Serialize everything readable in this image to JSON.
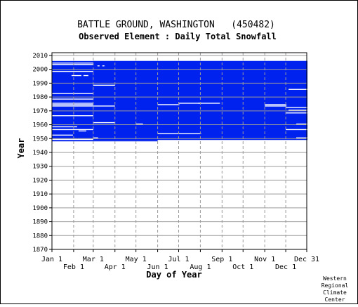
{
  "chart_data": {
    "type": "heatmap",
    "title": "BATTLE GROUND, WASHINGTON   (450482)",
    "subtitle": "Observed Element : Daily Total Snowfall",
    "xlabel": "Day of Year",
    "ylabel": "Year",
    "x_ticks_top_row": [
      "Jan 1",
      "Mar 1",
      "May 1",
      "Jul 1",
      "Sep 1",
      "Nov 1",
      "Dec 31"
    ],
    "x_ticks_bottom_row": [
      "Feb 1",
      "Apr 1",
      "Jun 1",
      "Aug 1",
      "Oct 1",
      "Dec 1"
    ],
    "x_tick_days": [
      1,
      32,
      60,
      91,
      121,
      152,
      182,
      213,
      244,
      274,
      305,
      335,
      365
    ],
    "y_ticks": [
      1870,
      1880,
      1890,
      1900,
      1910,
      1920,
      1930,
      1940,
      1950,
      1960,
      1970,
      1980,
      1990,
      2000,
      2010
    ],
    "xlim": [
      1,
      365
    ],
    "ylim": [
      1870,
      2012
    ],
    "grid": true,
    "data_color": "#0022ee",
    "coverage": [
      {
        "year_start": 2000,
        "year_end": 2005,
        "day_start": 1,
        "day_end": 365
      },
      {
        "year_start": 1949,
        "year_end": 2005,
        "day_start": 60,
        "day_end": 365
      },
      {
        "year_start": 1950,
        "year_end": 1999,
        "day_start": 1,
        "day_end": 59
      },
      {
        "year_start": 1948,
        "year_end": 1948,
        "day_start": 1,
        "day_end": 151
      }
    ],
    "missing": [
      {
        "year": 2004,
        "day_start": 1,
        "day_end": 59
      },
      {
        "year": 2003,
        "day_start": 1,
        "day_end": 59
      },
      {
        "year": 2002,
        "day_start": 66,
        "day_end": 68
      },
      {
        "year": 2002,
        "day_start": 73,
        "day_end": 75
      },
      {
        "year": 1998,
        "day_start": 1,
        "day_end": 59
      },
      {
        "year": 1995,
        "day_start": 29,
        "day_end": 42
      },
      {
        "year": 1995,
        "day_start": 46,
        "day_end": 52
      },
      {
        "year": 1988,
        "day_start": 60,
        "day_end": 90
      },
      {
        "year": 1985,
        "day_start": 339,
        "day_end": 365
      },
      {
        "year": 1982,
        "day_start": 1,
        "day_end": 59
      },
      {
        "year": 1978,
        "day_start": 1,
        "day_end": 59
      },
      {
        "year": 1975,
        "day_start": 1,
        "day_end": 59
      },
      {
        "year": 1975,
        "day_start": 182,
        "day_end": 213
      },
      {
        "year": 1975,
        "day_start": 210,
        "day_end": 240
      },
      {
        "year": 1974,
        "day_start": 1,
        "day_end": 59
      },
      {
        "year": 1974,
        "day_start": 152,
        "day_end": 182
      },
      {
        "year": 1974,
        "day_start": 305,
        "day_end": 335
      },
      {
        "year": 1973,
        "day_start": 1,
        "day_end": 59
      },
      {
        "year": 1973,
        "day_start": 60,
        "day_end": 90
      },
      {
        "year": 1973,
        "day_start": 305,
        "day_end": 335
      },
      {
        "year": 1972,
        "day_start": 335,
        "day_end": 365
      },
      {
        "year": 1970,
        "day_start": 339,
        "day_end": 365
      },
      {
        "year": 1968,
        "day_start": 335,
        "day_end": 365
      },
      {
        "year": 1966,
        "day_start": 1,
        "day_end": 59
      },
      {
        "year": 1961,
        "day_start": 60,
        "day_end": 90
      },
      {
        "year": 1960,
        "day_start": 121,
        "day_end": 130
      },
      {
        "year": 1960,
        "day_start": 350,
        "day_end": 365
      },
      {
        "year": 1958,
        "day_start": 1,
        "day_end": 36
      },
      {
        "year": 1956,
        "day_start": 1,
        "day_end": 59
      },
      {
        "year": 1956,
        "day_start": 335,
        "day_end": 365
      },
      {
        "year": 1955,
        "day_start": 39,
        "day_end": 49
      },
      {
        "year": 1953,
        "day_start": 152,
        "day_end": 213
      },
      {
        "year": 1952,
        "day_start": 1,
        "day_end": 30
      },
      {
        "year": 1950,
        "day_start": 60,
        "day_end": 66
      },
      {
        "year": 1950,
        "day_start": 350,
        "day_end": 365
      },
      {
        "year": 1949,
        "day_start": 1,
        "day_end": 30
      }
    ]
  },
  "footer": {
    "credit_lines": [
      "Western",
      "Regional",
      "Climate",
      "Center"
    ]
  }
}
